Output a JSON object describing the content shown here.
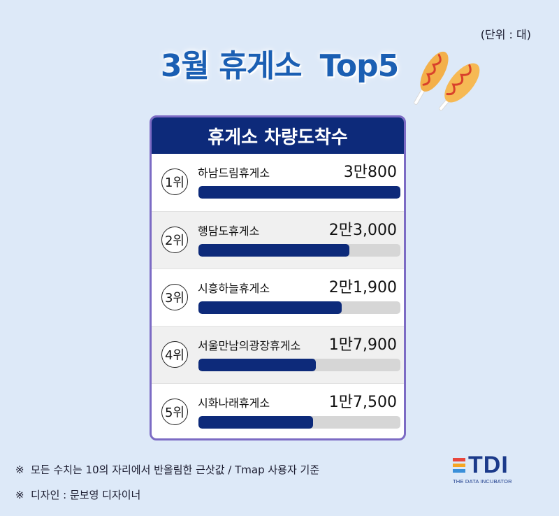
{
  "unit": "(단위 : 대)",
  "title": {
    "part1": "3월 휴게소",
    "part2": "Top5"
  },
  "chart_data": {
    "type": "bar",
    "title": "휴게소 차량도착수",
    "categories": [
      "하남드림휴게소",
      "행담도휴게소",
      "시흥하늘휴게소",
      "서울만남의광장휴게소",
      "시화나래휴게소"
    ],
    "ranks": [
      "1위",
      "2위",
      "3위",
      "4위",
      "5위"
    ],
    "values": [
      30800,
      23000,
      21900,
      17900,
      17500
    ],
    "value_labels": [
      "3만800",
      "2만3,000",
      "2만1,900",
      "1만7,900",
      "1만7,500"
    ],
    "xlim": [
      0,
      30800
    ],
    "orientation": "horizontal",
    "bar_color": "#0d2a7a",
    "track_color": "#d6d6d6",
    "header_color": "#0d2a7a"
  },
  "notes": [
    {
      "mark": "※",
      "text": "모든 수치는 10의 자리에서 반올림한 근삿값 / Tmap 사용자 기준"
    },
    {
      "mark": "※",
      "text": "디자인 : 문보영 디자이너"
    }
  ],
  "logo": {
    "text": "TDI",
    "subtitle": "THE DATA INCUBATOR",
    "bar_colors": [
      "#e8473d",
      "#f5a623",
      "#3a8fd9"
    ]
  },
  "colors": {
    "background": "#dde9f8",
    "title": "#1b5fb3",
    "card_border": "#7c6bc4"
  },
  "icons": {
    "decoration": "corn-dog-icon"
  }
}
